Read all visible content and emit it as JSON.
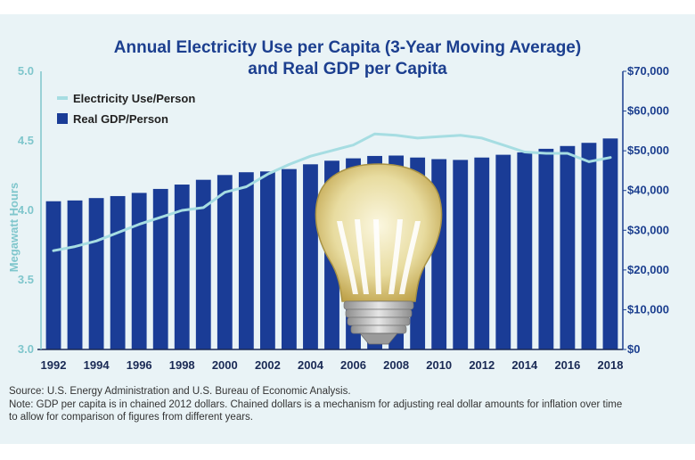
{
  "chart_data": {
    "type": "bar",
    "title_lines": [
      "Annual Electricity Use per Capita (3-Year Moving Average)",
      "and Real GDP per Capita"
    ],
    "ylabel_left": "Megawatt Hours",
    "ylabel_right": "",
    "y_left_lim": [
      3.0,
      5.0
    ],
    "y_left_ticks": [
      "3.0",
      "3.5",
      "4.0",
      "4.5",
      "5.0"
    ],
    "y_right_lim": [
      0,
      70000
    ],
    "y_right_ticks": [
      "$0",
      "$10,000",
      "$20,000",
      "$30,000",
      "$40,000",
      "$50,000",
      "$60,000",
      "$70,000"
    ],
    "x": [
      1992,
      1993,
      1994,
      1995,
      1996,
      1997,
      1998,
      1999,
      2000,
      2001,
      2002,
      2003,
      2004,
      2005,
      2006,
      2007,
      2008,
      2009,
      2010,
      2011,
      2012,
      2013,
      2014,
      2015,
      2016,
      2017,
      2018
    ],
    "x_tick_labels": [
      "1992",
      "1994",
      "1996",
      "1998",
      "2000",
      "2002",
      "2004",
      "2006",
      "2008",
      "2010",
      "2012",
      "2014",
      "2016",
      "2018"
    ],
    "legend_position": "top-left",
    "series": [
      {
        "name": "Electricity Use/Person",
        "type": "line",
        "axis": "left",
        "color": "#a6dde2",
        "values": [
          3.71,
          3.74,
          3.78,
          3.84,
          3.9,
          3.95,
          4.0,
          4.02,
          4.13,
          4.17,
          4.26,
          4.33,
          4.39,
          4.43,
          4.47,
          4.55,
          4.54,
          4.52,
          4.53,
          4.54,
          4.52,
          4.47,
          4.42,
          4.41,
          4.41,
          4.35,
          4.38
        ]
      },
      {
        "name": "Real GDP/Person",
        "type": "bar",
        "axis": "right",
        "color": "#1a3c96",
        "values": [
          37300,
          37500,
          38100,
          38600,
          39400,
          40400,
          41500,
          42700,
          43900,
          44600,
          44800,
          45400,
          46600,
          47500,
          48100,
          48700,
          48800,
          48300,
          47900,
          47700,
          48300,
          49000,
          49600,
          50500,
          51200,
          52000,
          53100
        ]
      }
    ]
  },
  "notes": {
    "source": "Source: U.S. Energy Administration and U.S. Bureau of Economic Analysis.",
    "note_line1": "Note: GDP per capita is in chained 2012 dollars. Chained dollars is a mechanism for adjusting real dollar amounts for inflation over time",
    "note_line2": "to allow for comparison of figures from different years."
  }
}
